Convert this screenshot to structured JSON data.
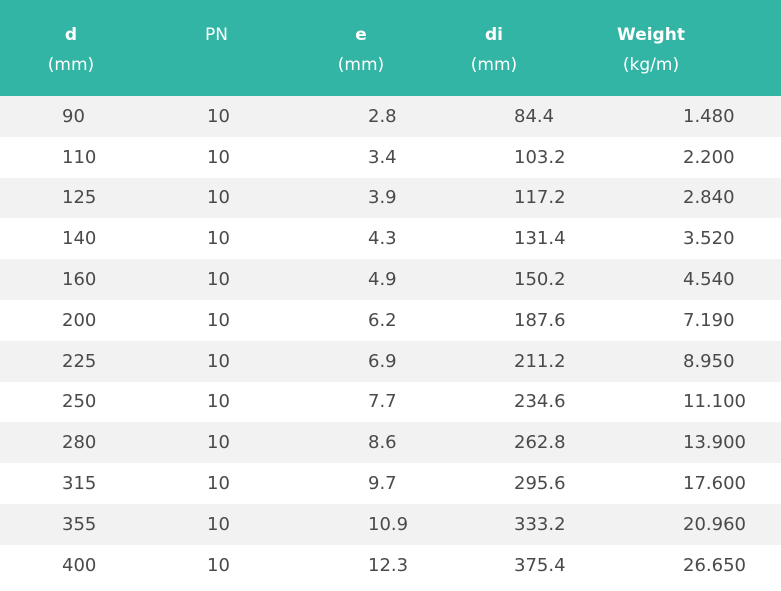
{
  "table": {
    "headers": [
      {
        "main": "d",
        "unit": "(mm)",
        "bold": true
      },
      {
        "main": "PN",
        "unit": "",
        "bold": false
      },
      {
        "main": "e",
        "unit": "(mm)",
        "bold": true
      },
      {
        "main": "di",
        "unit": "(mm)",
        "bold": true
      },
      {
        "main": "Weight",
        "unit": "(kg/m)",
        "bold": true
      }
    ],
    "rows": [
      [
        "90",
        "10",
        "2.8",
        "84.4",
        "1.480"
      ],
      [
        "110",
        "10",
        "3.4",
        "103.2",
        "2.200"
      ],
      [
        "125",
        "10",
        "3.9",
        "117.2",
        "2.840"
      ],
      [
        "140",
        "10",
        "4.3",
        "131.4",
        "3.520"
      ],
      [
        "160",
        "10",
        "4.9",
        "150.2",
        "4.540"
      ],
      [
        "200",
        "10",
        "6.2",
        "187.6",
        "7.190"
      ],
      [
        "225",
        "10",
        "6.9",
        "211.2",
        "8.950"
      ],
      [
        "250",
        "10",
        "7.7",
        "234.6",
        "11.100"
      ],
      [
        "280",
        "10",
        "8.6",
        "262.8",
        "13.900"
      ],
      [
        "315",
        "10",
        "9.7",
        "295.6",
        "17.600"
      ],
      [
        "355",
        "10",
        "10.9",
        "333.2",
        "20.960"
      ],
      [
        "400",
        "10",
        "12.3",
        "375.4",
        "26.650"
      ]
    ]
  },
  "colors": {
    "header_bg": "#33b5a6",
    "header_text": "#ffffff",
    "row_odd": "#f2f2f2",
    "row_even": "#ffffff",
    "body_text": "#4a4a4a"
  }
}
